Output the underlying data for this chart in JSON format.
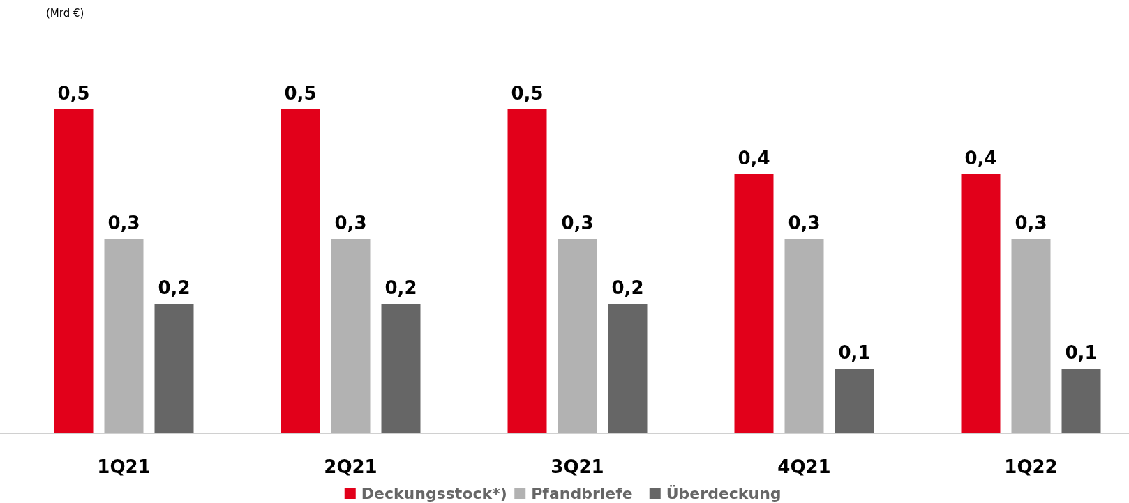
{
  "chart_data": {
    "type": "bar",
    "annotations": [
      "(Mrd €)"
    ],
    "categories": [
      "1Q21",
      "2Q21",
      "3Q21",
      "4Q21",
      "1Q22"
    ],
    "series": [
      {
        "name": "Deckungsstock*)",
        "color": "#e2001a",
        "values": [
          0.5,
          0.5,
          0.5,
          0.4,
          0.4
        ],
        "value_labels": [
          "0,5",
          "0,5",
          "0,5",
          "0,4",
          "0,4"
        ]
      },
      {
        "name": "Pfandbriefe",
        "color": "#b2b2b2",
        "values": [
          0.3,
          0.3,
          0.3,
          0.3,
          0.3
        ],
        "value_labels": [
          "0,3",
          "0,3",
          "0,3",
          "0,3",
          "0,3"
        ]
      },
      {
        "name": "Überdeckung",
        "color": "#666666",
        "values": [
          0.2,
          0.2,
          0.2,
          0.1,
          0.1
        ],
        "value_labels": [
          "0,2",
          "0,2",
          "0,2",
          "0,1",
          "0,1"
        ]
      }
    ],
    "legend": "bottom"
  }
}
